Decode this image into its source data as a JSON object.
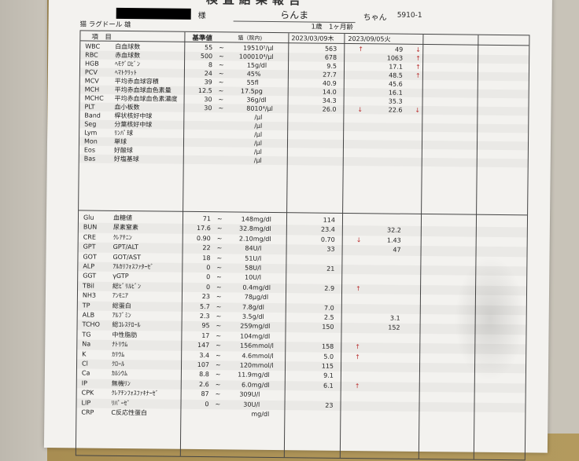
{
  "header": {
    "title": "検査結果報告",
    "honorific": "様",
    "pet_name": "らんま",
    "pet_suffix": "ちゃん",
    "patient_id": "5910-1",
    "species": "猫 ラグドール 雄",
    "age": "1歳　1ヶ月齢"
  },
  "columns": {
    "item": "項　目",
    "reference": "基準値",
    "reference_note": "猫（院内)",
    "date1": "2023/03/09木",
    "date2": "2023/09/05火"
  },
  "arrow_color": "#b33333",
  "cbc": [
    {
      "code": "WBC",
      "name": "白血球数",
      "lo": "55",
      "hi": "195",
      "unit": "10²/μl",
      "v1": "563",
      "a1": "↑",
      "v2": "49",
      "a2": "↓"
    },
    {
      "code": "RBC",
      "name": "赤血球数",
      "lo": "500",
      "hi": "1000",
      "unit": "10⁴/μl",
      "v1": "678",
      "a1": "",
      "v2": "1063",
      "a2": "↑"
    },
    {
      "code": "HGB",
      "name": "ﾍﾓｸﾞﾛﾋﾞﾝ",
      "lo": "8",
      "hi": "15",
      "unit": "g/dl",
      "v1": "9.5",
      "a1": "",
      "v2": "17.1",
      "a2": "↑"
    },
    {
      "code": "PCV",
      "name": "ﾍﾏﾄｸﾘｯﾄ",
      "lo": "24",
      "hi": "45",
      "unit": "%",
      "v1": "27.7",
      "a1": "",
      "v2": "48.5",
      "a2": "↑"
    },
    {
      "code": "MCV",
      "name": "平均赤血球容積",
      "lo": "39",
      "hi": "55",
      "unit": "fl",
      "v1": "40.9",
      "a1": "",
      "v2": "45.6",
      "a2": ""
    },
    {
      "code": "MCH",
      "name": "平均赤血球血色素量",
      "lo": "12.5",
      "hi": "17.5",
      "unit": "pg",
      "v1": "14.0",
      "a1": "",
      "v2": "16.1",
      "a2": ""
    },
    {
      "code": "MCHC",
      "name": "平均赤血球血色素濃度",
      "lo": "30",
      "hi": "36",
      "unit": "g/dl",
      "v1": "34.3",
      "a1": "",
      "v2": "35.3",
      "a2": ""
    },
    {
      "code": "PLT",
      "name": "血小板数",
      "lo": "30",
      "hi": "80",
      "unit": "10⁴/μl",
      "v1": "26.0",
      "a1": "↓",
      "v2": "22.6",
      "a2": "↓"
    },
    {
      "code": "Band",
      "name": "桿状核好中球",
      "lo": "",
      "hi": "",
      "unit": "/μl",
      "v1": "",
      "a1": "",
      "v2": "",
      "a2": ""
    },
    {
      "code": "Seg",
      "name": "分葉核好中球",
      "lo": "",
      "hi": "",
      "unit": "/μl",
      "v1": "",
      "a1": "",
      "v2": "",
      "a2": ""
    },
    {
      "code": "Lym",
      "name": "ﾘﾝﾊﾟ球",
      "lo": "",
      "hi": "",
      "unit": "/μl",
      "v1": "",
      "a1": "",
      "v2": "",
      "a2": ""
    },
    {
      "code": "Mon",
      "name": "単球",
      "lo": "",
      "hi": "",
      "unit": "/μl",
      "v1": "",
      "a1": "",
      "v2": "",
      "a2": ""
    },
    {
      "code": "Eos",
      "name": "好酸球",
      "lo": "",
      "hi": "",
      "unit": "/μl",
      "v1": "",
      "a1": "",
      "v2": "",
      "a2": ""
    },
    {
      "code": "Bas",
      "name": "好塩基球",
      "lo": "",
      "hi": "",
      "unit": "/μl",
      "v1": "",
      "a1": "",
      "v2": "",
      "a2": ""
    }
  ],
  "chem": [
    {
      "code": "Glu",
      "name": "血糖値",
      "lo": "71",
      "hi": "148",
      "unit": "mg/dl",
      "v1": "114",
      "a1": "",
      "v2": "",
      "a2": ""
    },
    {
      "code": "BUN",
      "name": "尿素窒素",
      "lo": "17.6",
      "hi": "32.8",
      "unit": "mg/dl",
      "v1": "23.4",
      "a1": "",
      "v2": "32.2",
      "a2": ""
    },
    {
      "code": "CRE",
      "name": "ｸﾚｱﾁﾆﾝ",
      "lo": "0.90",
      "hi": "2.10",
      "unit": "mg/dl",
      "v1": "0.70",
      "a1": "↓",
      "v2": "1.43",
      "a2": ""
    },
    {
      "code": "GPT",
      "name": "GPT/ALT",
      "lo": "22",
      "hi": "84",
      "unit": "U/l",
      "v1": "33",
      "a1": "",
      "v2": "47",
      "a2": ""
    },
    {
      "code": "GOT",
      "name": "GOT/AST",
      "lo": "18",
      "hi": "51",
      "unit": "U/l",
      "v1": "",
      "a1": "",
      "v2": "",
      "a2": ""
    },
    {
      "code": "ALP",
      "name": "ｱﾙｶﾘﾌｫｽﾌｧﾀｰｾﾞ",
      "lo": "0",
      "hi": "58",
      "unit": "U/l",
      "v1": "21",
      "a1": "",
      "v2": "",
      "a2": ""
    },
    {
      "code": "GGT",
      "name": "γGTP",
      "lo": "0",
      "hi": "10",
      "unit": "U/l",
      "v1": "",
      "a1": "",
      "v2": "",
      "a2": ""
    },
    {
      "code": "TBil",
      "name": "総ﾋﾞﾘﾙﾋﾞﾝ",
      "lo": "0",
      "hi": "0.4",
      "unit": "mg/dl",
      "v1": "2.9",
      "a1": "↑",
      "v2": "",
      "a2": ""
    },
    {
      "code": "NH3",
      "name": "ｱﾝﾓﾆｱ",
      "lo": "23",
      "hi": "78",
      "unit": "μg/dl",
      "v1": "",
      "a1": "",
      "v2": "",
      "a2": ""
    },
    {
      "code": "TP",
      "name": "総蛋白",
      "lo": "5.7",
      "hi": "7.8",
      "unit": "g/dl",
      "v1": "7.0",
      "a1": "",
      "v2": "",
      "a2": ""
    },
    {
      "code": "ALB",
      "name": "ｱﾙﾌﾞﾐﾝ",
      "lo": "2.3",
      "hi": "3.5",
      "unit": "g/dl",
      "v1": "2.5",
      "a1": "",
      "v2": "3.1",
      "a2": ""
    },
    {
      "code": "TCHO",
      "name": "総ｺﾚｽﾃﾛｰﾙ",
      "lo": "95",
      "hi": "259",
      "unit": "mg/dl",
      "v1": "150",
      "a1": "",
      "v2": "152",
      "a2": ""
    },
    {
      "code": "TG",
      "name": "中性脂肪",
      "lo": "17",
      "hi": "104",
      "unit": "mg/dl",
      "v1": "",
      "a1": "",
      "v2": "",
      "a2": ""
    },
    {
      "code": "Na",
      "name": "ﾅﾄﾘｳﾑ",
      "lo": "147",
      "hi": "156",
      "unit": "mmol/l",
      "v1": "158",
      "a1": "↑",
      "v2": "",
      "a2": ""
    },
    {
      "code": "K",
      "name": "ｶﾘｳﾑ",
      "lo": "3.4",
      "hi": "4.6",
      "unit": "mmol/l",
      "v1": "5.0",
      "a1": "↑",
      "v2": "",
      "a2": ""
    },
    {
      "code": "Cl",
      "name": "ｸﾛｰﾙ",
      "lo": "107",
      "hi": "120",
      "unit": "mmol/l",
      "v1": "115",
      "a1": "",
      "v2": "",
      "a2": ""
    },
    {
      "code": "Ca",
      "name": "ｶﾙｼｳﾑ",
      "lo": "8.8",
      "hi": "11.9",
      "unit": "mg/dl",
      "v1": "9.1",
      "a1": "",
      "v2": "",
      "a2": ""
    },
    {
      "code": "IP",
      "name": "無機ﾘﾝ",
      "lo": "2.6",
      "hi": "6.0",
      "unit": "mg/dl",
      "v1": "6.1",
      "a1": "↑",
      "v2": "",
      "a2": ""
    },
    {
      "code": "CPK",
      "name": "ｸﾚｱﾁﾝﾌｫｽﾌｧｷﾅｰｾﾞ",
      "lo": "87",
      "hi": "309",
      "unit": "U/l",
      "v1": "",
      "a1": "",
      "v2": "",
      "a2": ""
    },
    {
      "code": "LIP",
      "name": "ﾘﾊﾟｰｾﾞ",
      "lo": "0",
      "hi": "30",
      "unit": "U/l",
      "v1": "23",
      "a1": "",
      "v2": "",
      "a2": ""
    },
    {
      "code": "CRP",
      "name": "C反応性蛋白",
      "lo": "",
      "hi": "",
      "unit": "mg/dl",
      "v1": "",
      "a1": "",
      "v2": "",
      "a2": ""
    }
  ]
}
